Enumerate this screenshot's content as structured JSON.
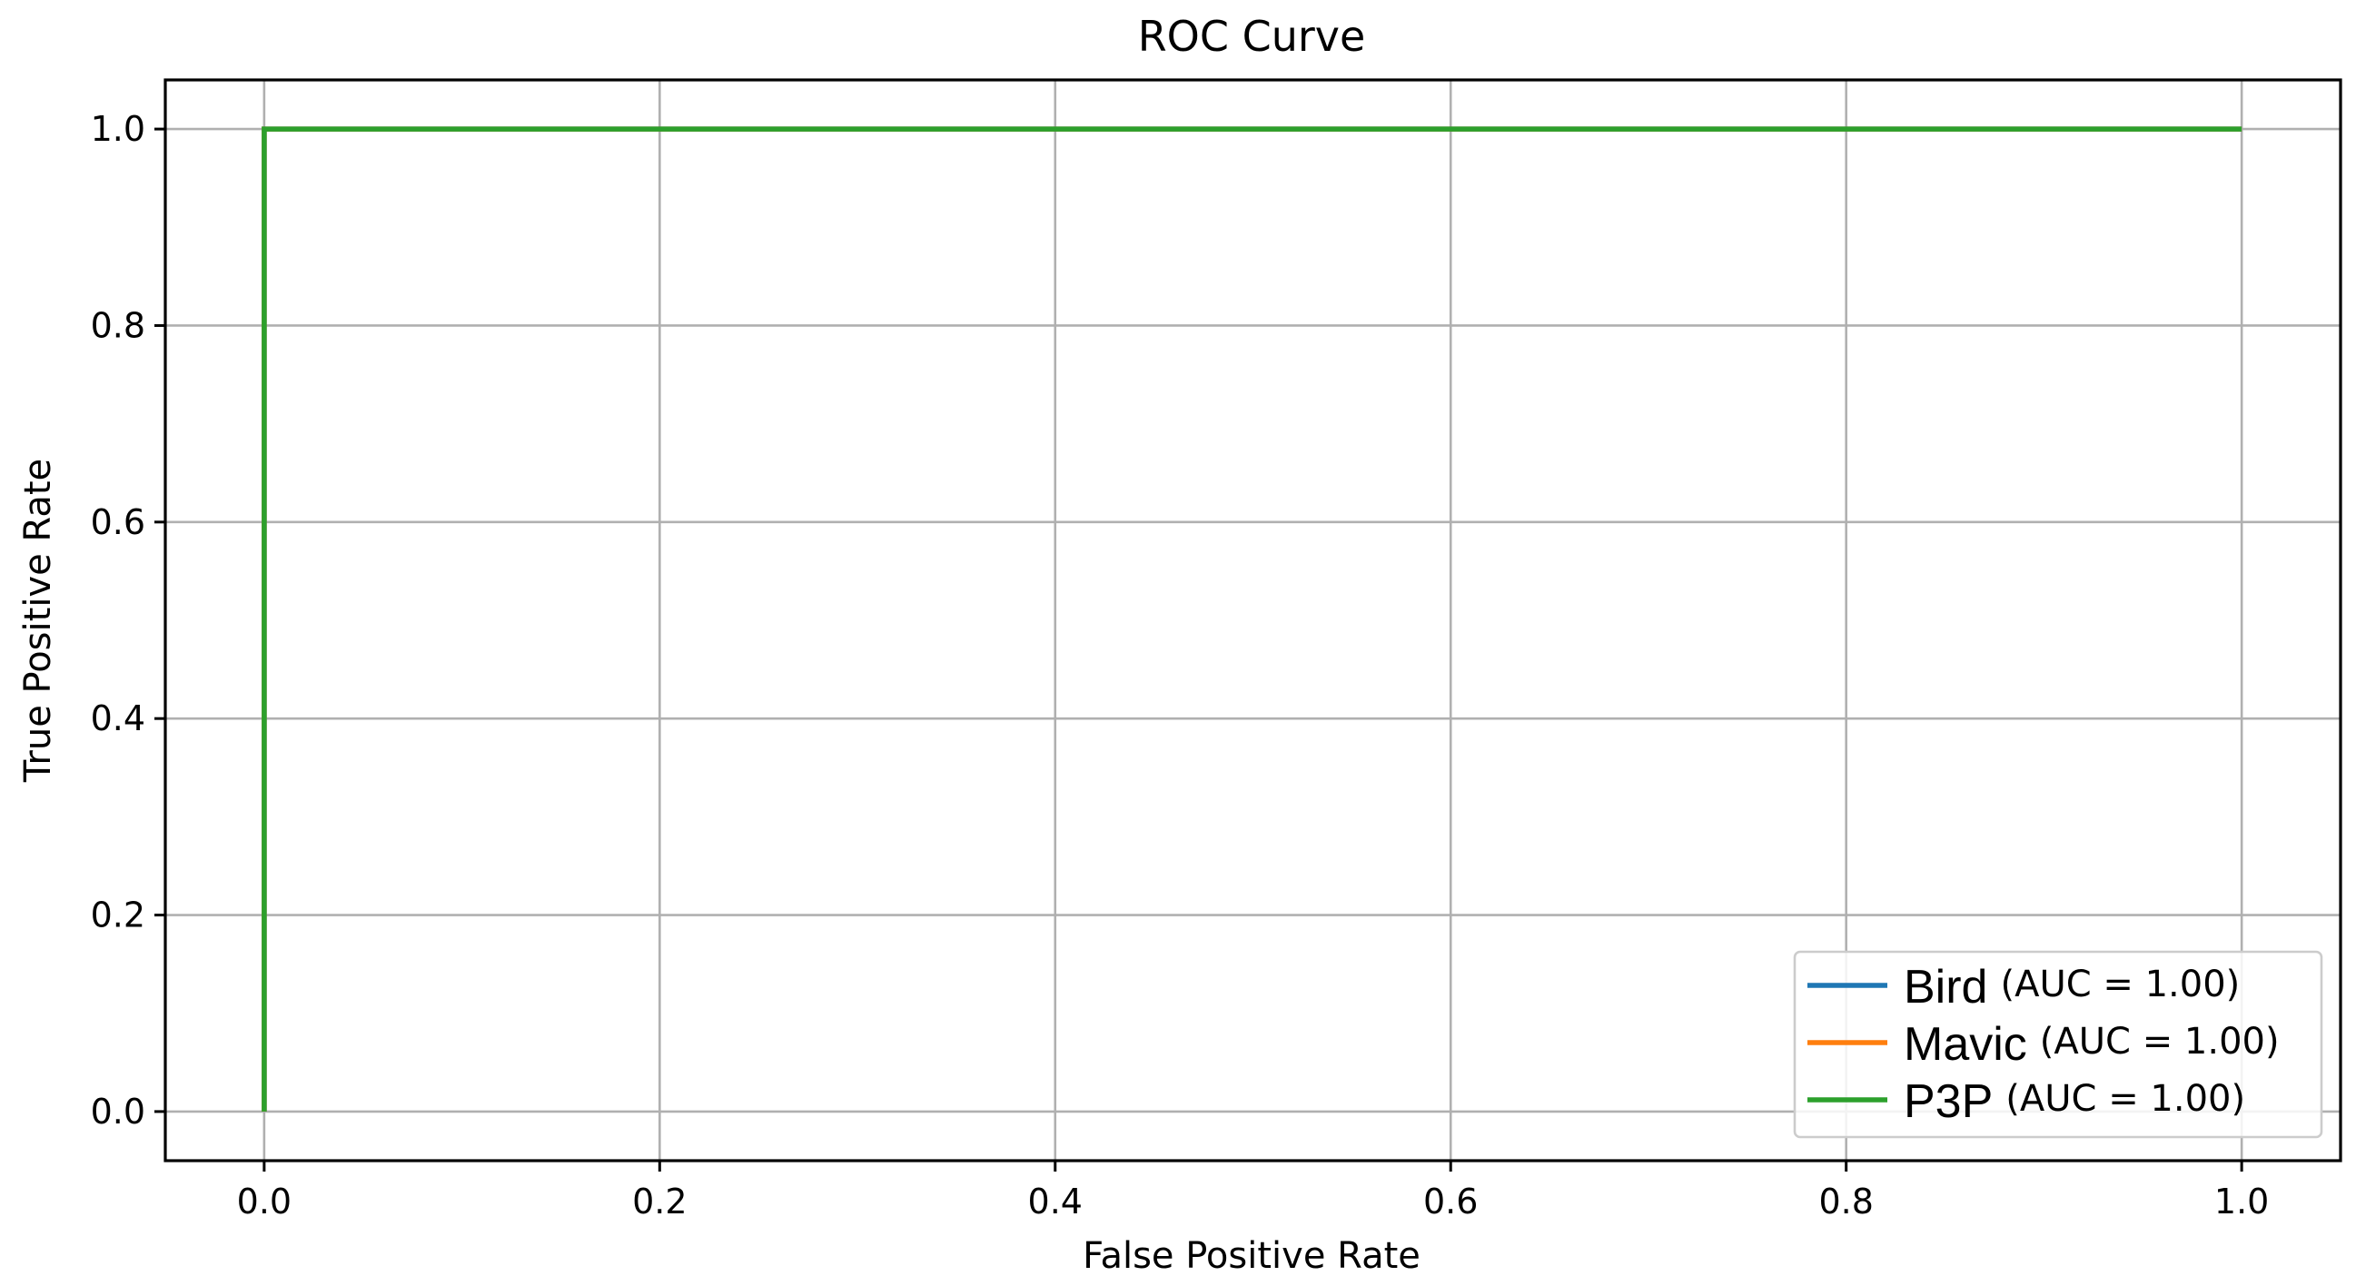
{
  "chart_data": {
    "type": "line",
    "title": "ROC Curve",
    "xlabel": "False Positive Rate",
    "ylabel": "True Positive Rate",
    "xlim": [
      -0.05,
      1.05
    ],
    "ylim": [
      -0.05,
      1.05
    ],
    "xticks": [
      0.0,
      0.2,
      0.4,
      0.6,
      0.8,
      1.0
    ],
    "yticks": [
      0.0,
      0.2,
      0.4,
      0.6,
      0.8,
      1.0
    ],
    "xtick_labels": [
      "0.0",
      "0.2",
      "0.4",
      "0.6",
      "0.8",
      "1.0"
    ],
    "ytick_labels": [
      "0.0",
      "0.2",
      "0.4",
      "0.6",
      "0.8",
      "1.0"
    ],
    "grid": true,
    "legend_position": "lower-right",
    "series": [
      {
        "name": "Bird",
        "auc_label": "(AUC = 1.00)",
        "color": "#1f77b4",
        "x": [
          0.0,
          0.0,
          1.0
        ],
        "y": [
          0.0,
          1.0,
          1.0
        ]
      },
      {
        "name": "Mavic",
        "auc_label": "(AUC = 1.00)",
        "color": "#ff7f0e",
        "x": [
          0.0,
          0.0,
          1.0
        ],
        "y": [
          0.0,
          1.0,
          1.0
        ]
      },
      {
        "name": "P3P",
        "auc_label": "(AUC = 1.00)",
        "color": "#2ca02c",
        "x": [
          0.0,
          0.0,
          1.0
        ],
        "y": [
          0.0,
          1.0,
          1.0
        ]
      }
    ]
  }
}
